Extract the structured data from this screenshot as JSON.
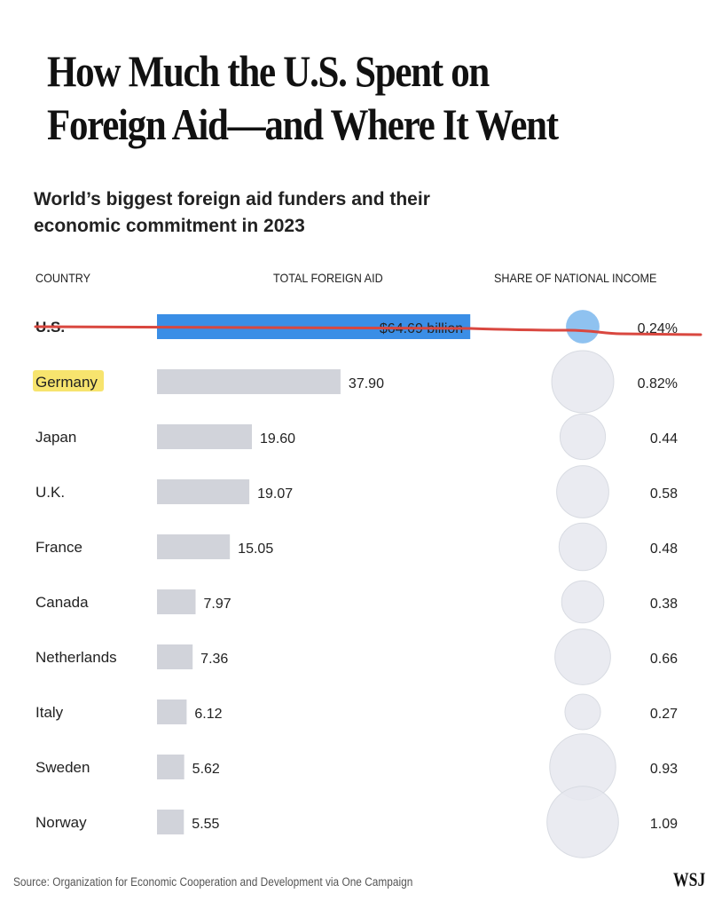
{
  "header": {
    "title_line1": "How Much the U.S. Spent on",
    "title_line2": "Foreign Aid—and Where It Went",
    "subtitle_line1": "World’s biggest foreign aid funders and their",
    "subtitle_line2": "economic commitment in 2023"
  },
  "footer": {
    "source": "Source: Organization for Economic Cooperation and Development via One Campaign",
    "logo": "WSJ"
  },
  "colors": {
    "highlight_bar": "#3a8ee6",
    "bar": "#d1d3da",
    "bubble": "#e6e8ee",
    "highlight_bubble": "#8fc2f0",
    "annotation_line": "#d9473f",
    "marker": "#f5dd4a"
  },
  "chart_data": {
    "type": "bar",
    "title": "World’s biggest foreign aid funders and their economic commitment in 2023",
    "column_headers": [
      "COUNTRY",
      "TOTAL FOREIGN AID",
      "SHARE OF NATIONAL INCOME"
    ],
    "categories": [
      "U.S.",
      "Germany",
      "Japan",
      "U.K.",
      "France",
      "Canada",
      "Netherlands",
      "Italy",
      "Sweden",
      "Norway"
    ],
    "series": [
      {
        "name": "Total foreign aid ($ billion)",
        "values": [
          64.69,
          37.9,
          19.6,
          19.07,
          15.05,
          7.97,
          7.36,
          6.12,
          5.62,
          5.55
        ],
        "labels": [
          "$64.69 billion",
          "37.90",
          "19.60",
          "19.07",
          "15.05",
          "7.97",
          "7.36",
          "6.12",
          "5.62",
          "5.55"
        ]
      },
      {
        "name": "Share of national income (%)",
        "values": [
          0.24,
          0.82,
          0.44,
          0.58,
          0.48,
          0.38,
          0.66,
          0.27,
          0.93,
          1.09
        ],
        "labels": [
          "0.24%",
          "0.82%",
          "0.44",
          "0.58",
          "0.48",
          "0.38",
          "0.66",
          "0.27",
          "0.93",
          "1.09"
        ]
      }
    ],
    "highlight": "U.S.",
    "annotations": [
      "U.S. row struck through with red line",
      "Germany highlighted in yellow"
    ]
  }
}
